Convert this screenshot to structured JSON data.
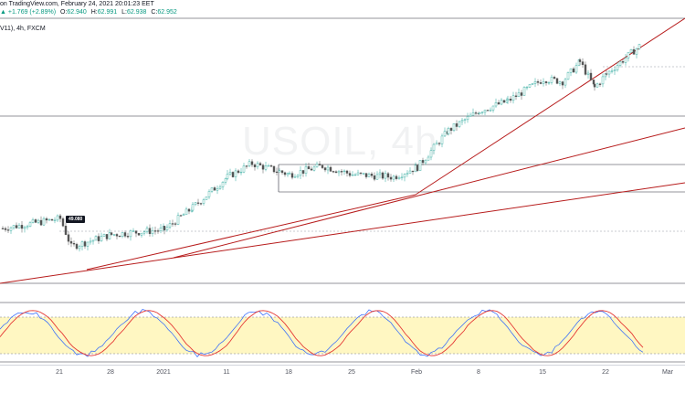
{
  "header": {
    "source_text": "on TradingView.com, February 24, 2021 20:01:23 EET",
    "change": "+1.769 (+2.89%)",
    "o_label": "O:",
    "o_value": "62.940",
    "h_label": "H:",
    "h_value": "62.991",
    "l_label": "L:",
    "l_value": "62.938",
    "c_label": "C:",
    "c_value": "62.952",
    "instrument": "V11), 4h, FXCM"
  },
  "watermark": "USOIL, 4h",
  "price_tag": "49.080",
  "colors": {
    "bull": "#26a69a",
    "bear": "#555555",
    "trendline": "#b71c1c",
    "hline": "#2a2e39",
    "dotted": "#9598a1",
    "stoch_band": "#fff7c2",
    "stoch_k": "#2962ff",
    "stoch_d": "#e53935"
  },
  "chart_data": {
    "type": "line",
    "symbol": "USOIL",
    "timeframe": "4h",
    "x_tick_labels": [
      "21",
      "28",
      "2021",
      "11",
      "18",
      "25",
      "Feb",
      "8",
      "15",
      "22",
      "Mar"
    ],
    "close_path": [
      [
        "start",
        48.0
      ],
      [
        "21",
        48.8
      ],
      [
        "24",
        46.5
      ],
      [
        "28",
        47.5
      ],
      [
        "2021",
        47.9
      ],
      [
        "5",
        49.7
      ],
      [
        "11",
        52.2
      ],
      [
        "13",
        53.3
      ],
      [
        "18",
        52.4
      ],
      [
        "21",
        53.1
      ],
      [
        "25",
        52.4
      ],
      [
        "29",
        52.2
      ],
      [
        "Feb",
        53.0
      ],
      [
        "4",
        56.0
      ],
      [
        "8",
        57.6
      ],
      [
        "11",
        58.4
      ],
      [
        "15",
        60.2
      ],
      [
        "17",
        60.0
      ],
      [
        "19",
        61.6
      ],
      [
        "21",
        59.5
      ],
      [
        "22",
        60.6
      ],
      [
        "24",
        62.95
      ]
    ],
    "annotations": [
      "49.080"
    ],
    "indicator": {
      "name": "Stochastic",
      "overbought": 80,
      "oversold": 20
    }
  },
  "axis": {
    "t0": "21",
    "t1": "28",
    "t2": "2021",
    "t3": "11",
    "t4": "18",
    "t5": "25",
    "t6": "Feb",
    "t7": "8",
    "t8": "15",
    "t9": "22",
    "t10": "Mar"
  }
}
